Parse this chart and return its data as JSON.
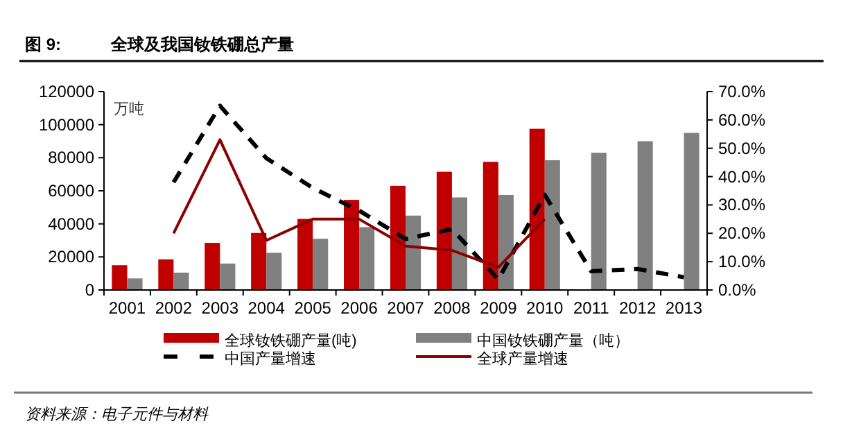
{
  "chart_data": {
    "type": "bar",
    "title": "图 9:",
    "subtitle": "全球及我国钕铁硼总产量",
    "ylabel": "万吨",
    "categories": [
      "2001",
      "2002",
      "2003",
      "2004",
      "2005",
      "2006",
      "2007",
      "2008",
      "2009",
      "2010",
      "2011",
      "2012",
      "2013"
    ],
    "series": [
      {
        "name": "全球钕铁硼产量(吨)",
        "color": "#c00000",
        "values": [
          15000,
          18500,
          28500,
          34500,
          43000,
          54500,
          63000,
          71500,
          77500,
          97500,
          null,
          null,
          null
        ]
      },
      {
        "name": "中国钕铁硼产量（吨）",
        "color": "#808080",
        "values": [
          7000,
          10500,
          16000,
          22500,
          31000,
          38000,
          45000,
          56000,
          57500,
          78500,
          83000,
          90000,
          95000
        ]
      },
      {
        "name": "中国产量增速",
        "type": "line",
        "axis": "y2",
        "line_style": "dashed",
        "color": "#000000",
        "values": [
          null,
          38,
          65,
          46.5,
          36,
          28,
          18,
          21.5,
          3.7,
          33.6,
          6.6,
          7.4,
          4.5
        ]
      },
      {
        "name": "全球产量增速",
        "type": "line",
        "axis": "y2",
        "line_style": "solid",
        "color": "#8b0000",
        "values": [
          null,
          20,
          53,
          17.5,
          25,
          25,
          15.5,
          14,
          8,
          25,
          null,
          null,
          null
        ]
      }
    ],
    "ylim": [
      0,
      120000
    ],
    "yticks": [
      0,
      20000,
      40000,
      60000,
      80000,
      100000,
      120000
    ],
    "y2lim": [
      0,
      70
    ],
    "y2ticks": [
      {
        "value": 0,
        "label": "0.0%"
      },
      {
        "value": 10,
        "label": "10.0%"
      },
      {
        "value": 20,
        "label": "20.0%"
      },
      {
        "value": 30,
        "label": "30.0%"
      },
      {
        "value": 40,
        "label": "40.0%"
      },
      {
        "value": 50,
        "label": "50.0%"
      },
      {
        "value": 60,
        "label": "60.0%"
      },
      {
        "value": 70,
        "label": "70.0%"
      }
    ],
    "legend": "bottom",
    "annotations": [
      "资料来源：电子元件与材料"
    ]
  }
}
